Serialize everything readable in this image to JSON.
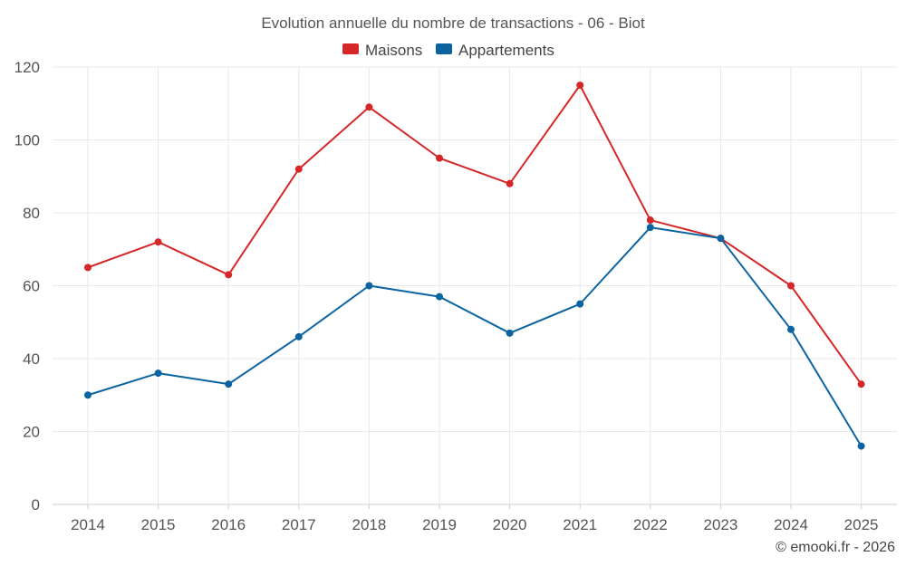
{
  "chart_data": {
    "type": "line",
    "title": "Evolution annuelle du nombre de transactions - 06 - Biot",
    "categories": [
      "2014",
      "2015",
      "2016",
      "2017",
      "2018",
      "2019",
      "2020",
      "2021",
      "2022",
      "2023",
      "2024",
      "2025"
    ],
    "series": [
      {
        "name": "Maisons",
        "color": "#d62728",
        "values": [
          65,
          72,
          63,
          92,
          109,
          95,
          88,
          115,
          78,
          73,
          60,
          33
        ]
      },
      {
        "name": "Appartements",
        "color": "#0b64a0",
        "values": [
          30,
          36,
          33,
          46,
          60,
          57,
          47,
          55,
          76,
          73,
          48,
          16
        ]
      }
    ],
    "xlabel": "",
    "ylabel": "",
    "ylim": [
      0,
      120
    ],
    "yticks": [
      0,
      20,
      40,
      60,
      80,
      100,
      120
    ],
    "grid": true,
    "legend_position": "top-center"
  },
  "credit": "© emooki.fr - 2026"
}
